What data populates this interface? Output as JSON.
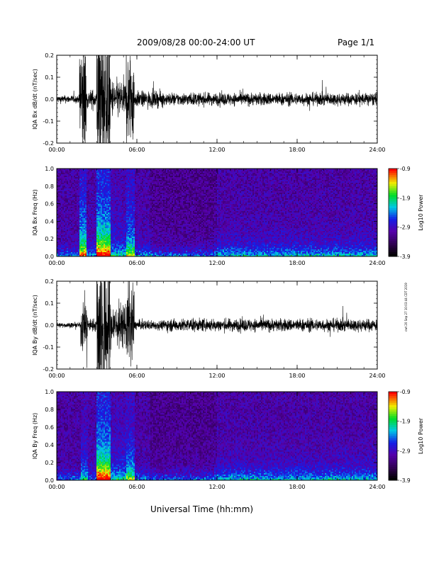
{
  "header": {
    "title": "2009/08/28  00:00-24:00 UT",
    "page": "Page 1/1"
  },
  "footer": {
    "xlabel": "Universal Time (hh:mm)"
  },
  "side_caption": "cwt 20 Sep 27 10:03:44 CDT 2019",
  "chart_data": [
    {
      "type": "line",
      "ylabel": "IQA Bx dB/dt (nT/sec)",
      "xlim": [
        0,
        24
      ],
      "ylim": [
        -0.2,
        0.2
      ],
      "x_ticks": [
        "00:00",
        "06:00",
        "12:00",
        "18:00",
        "24:00"
      ],
      "y_ticks": [
        "0.2",
        "0.1",
        "0.0",
        "-0.1",
        "-0.2"
      ],
      "activity_profile": [
        {
          "start_hr": 0.0,
          "end_hr": 1.7,
          "amplitude": 0.012
        },
        {
          "start_hr": 1.7,
          "end_hr": 2.2,
          "amplitude": 0.2
        },
        {
          "start_hr": 2.2,
          "end_hr": 3.0,
          "amplitude": 0.03
        },
        {
          "start_hr": 3.0,
          "end_hr": 4.0,
          "amplitude": 0.25
        },
        {
          "start_hr": 4.0,
          "end_hr": 5.2,
          "amplitude": 0.06
        },
        {
          "start_hr": 5.2,
          "end_hr": 5.8,
          "amplitude": 0.15
        },
        {
          "start_hr": 5.8,
          "end_hr": 8.0,
          "amplitude": 0.025
        },
        {
          "start_hr": 8.0,
          "end_hr": 24.0,
          "amplitude": 0.02
        }
      ]
    },
    {
      "type": "heatmap",
      "ylabel": "IQA Bx Freq (Hz)",
      "xlim": [
        0,
        24
      ],
      "ylim": [
        0,
        1.0
      ],
      "x_ticks": [
        "00:00",
        "06:00",
        "12:00",
        "18:00",
        "24:00"
      ],
      "y_ticks": [
        "1.0",
        "0.8",
        "0.6",
        "0.4",
        "0.2",
        "0.0"
      ],
      "colorbar": {
        "label": "Log10 Power",
        "min": -3.9,
        "max": -0.9,
        "ticks": [
          "-0.9",
          "-1.9",
          "-2.9",
          "-3.9"
        ]
      }
    },
    {
      "type": "line",
      "ylabel": "IQA By dB/dt (nT/sec)",
      "xlim": [
        0,
        24
      ],
      "ylim": [
        -0.2,
        0.2
      ],
      "x_ticks": [
        "00:00",
        "06:00",
        "12:00",
        "18:00",
        "24:00"
      ],
      "y_ticks": [
        "0.2",
        "0.1",
        "0.0",
        "-0.1",
        "-0.2"
      ],
      "activity_profile": [
        {
          "start_hr": 0.0,
          "end_hr": 1.8,
          "amplitude": 0.008
        },
        {
          "start_hr": 1.8,
          "end_hr": 2.3,
          "amplitude": 0.08
        },
        {
          "start_hr": 2.3,
          "end_hr": 3.0,
          "amplitude": 0.02
        },
        {
          "start_hr": 3.0,
          "end_hr": 4.0,
          "amplitude": 0.25
        },
        {
          "start_hr": 4.0,
          "end_hr": 5.2,
          "amplitude": 0.07
        },
        {
          "start_hr": 5.2,
          "end_hr": 5.8,
          "amplitude": 0.13
        },
        {
          "start_hr": 5.8,
          "end_hr": 8.0,
          "amplitude": 0.015
        },
        {
          "start_hr": 8.0,
          "end_hr": 24.0,
          "amplitude": 0.02
        }
      ]
    },
    {
      "type": "heatmap",
      "ylabel": "IQA By Freq (Hz)",
      "xlim": [
        0,
        24
      ],
      "ylim": [
        0,
        1.0
      ],
      "x_ticks": [
        "00:00",
        "06:00",
        "12:00",
        "18:00",
        "24:00"
      ],
      "y_ticks": [
        "1.0",
        "0.8",
        "0.6",
        "0.4",
        "0.2",
        "0.0"
      ],
      "colorbar": {
        "label": "Log10 Power",
        "min": -3.9,
        "max": -0.9,
        "ticks": [
          "-0.9",
          "-1.9",
          "-2.9",
          "-3.9"
        ]
      }
    }
  ]
}
